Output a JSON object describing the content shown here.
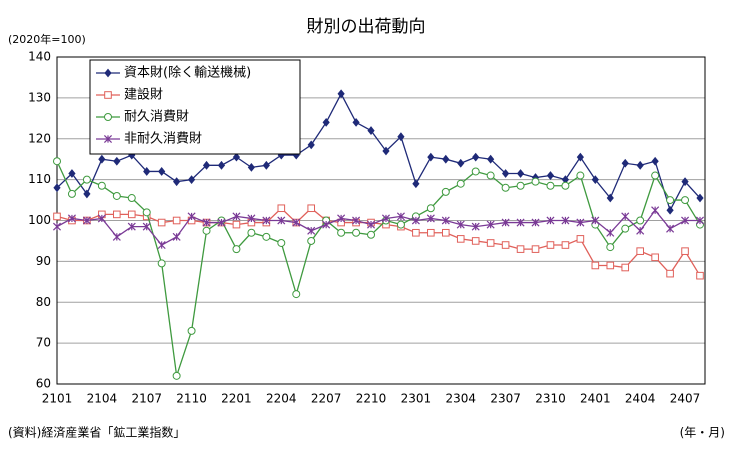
{
  "chart_data": {
    "type": "line",
    "title": "財別の出荷動向",
    "unit_label": "(2020年=100)",
    "source": "(資料)経済産業省「鉱工業指数」",
    "x_label": "(年・月)",
    "categories": [
      "2101",
      null,
      null,
      "2104",
      null,
      null,
      "2107",
      null,
      null,
      "2110",
      null,
      null,
      "2201",
      null,
      null,
      "2204",
      null,
      null,
      "2207",
      null,
      null,
      "2210",
      null,
      null,
      "2301",
      null,
      null,
      "2304",
      null,
      null,
      "2307",
      null,
      null,
      "2310",
      null,
      null,
      "2401",
      null,
      null,
      "2404",
      null,
      null,
      "2407",
      null
    ],
    "ylim": [
      60,
      140
    ],
    "yticks": [
      60,
      70,
      80,
      90,
      100,
      110,
      120,
      130,
      140
    ],
    "grid": true,
    "legend": "upper left",
    "series": [
      {
        "name": "資本財(除く輸送機械)",
        "color": "#1f2a78",
        "marker": "diamond",
        "values": [
          108,
          111.5,
          106.5,
          115,
          114.5,
          116,
          112,
          112,
          109.5,
          110,
          113.5,
          113.5,
          115.5,
          113,
          113.5,
          116,
          116,
          118.5,
          124,
          131,
          124,
          122,
          117,
          120.5,
          109,
          115.5,
          115,
          114,
          115.5,
          115,
          111.5,
          111.5,
          110.5,
          111,
          110,
          115.5,
          110,
          105.5,
          114,
          113.5,
          114.5,
          102.5,
          109.5,
          105.5
        ]
      },
      {
        "name": "建設財",
        "color": "#e0605a",
        "marker": "square",
        "values": [
          101,
          100,
          100,
          101.5,
          101.5,
          101.5,
          101,
          99.5,
          100,
          100,
          99.5,
          99.5,
          99,
          99.5,
          99.5,
          103,
          99.5,
          103,
          100,
          99.5,
          99.5,
          99.5,
          99,
          98.5,
          97,
          97,
          97,
          95.5,
          95,
          94.5,
          94,
          93,
          93,
          94,
          94,
          95.5,
          89,
          89,
          88.5,
          92.5,
          91,
          87,
          92.5,
          86.5
        ]
      },
      {
        "name": "耐久消費財",
        "color": "#3f9a3f",
        "marker": "circle",
        "values": [
          114.5,
          106.5,
          110,
          108.5,
          106,
          105.5,
          102,
          89.5,
          62,
          73,
          97.5,
          100,
          93,
          97,
          96,
          94.5,
          82,
          95,
          100,
          97,
          97,
          96.5,
          100,
          99,
          101,
          103,
          107,
          109,
          112,
          111,
          108,
          108.5,
          109.5,
          108.5,
          108.5,
          111,
          99,
          93.5,
          98,
          100,
          111,
          105,
          105,
          99
        ]
      },
      {
        "name": "非耐久消費財",
        "color": "#7a3a96",
        "marker": "cross",
        "values": [
          98.5,
          100.5,
          100,
          100.5,
          96,
          98.5,
          98.5,
          94,
          96,
          101,
          99.5,
          99.5,
          101,
          100.5,
          100,
          100,
          99.5,
          97.5,
          99,
          100.5,
          100,
          99,
          100.5,
          101,
          100,
          100.5,
          100,
          99,
          98.5,
          99,
          99.5,
          99.5,
          99.5,
          100,
          100,
          99.5,
          100,
          97,
          101,
          97.5,
          102.5,
          98,
          100,
          100
        ]
      }
    ]
  }
}
